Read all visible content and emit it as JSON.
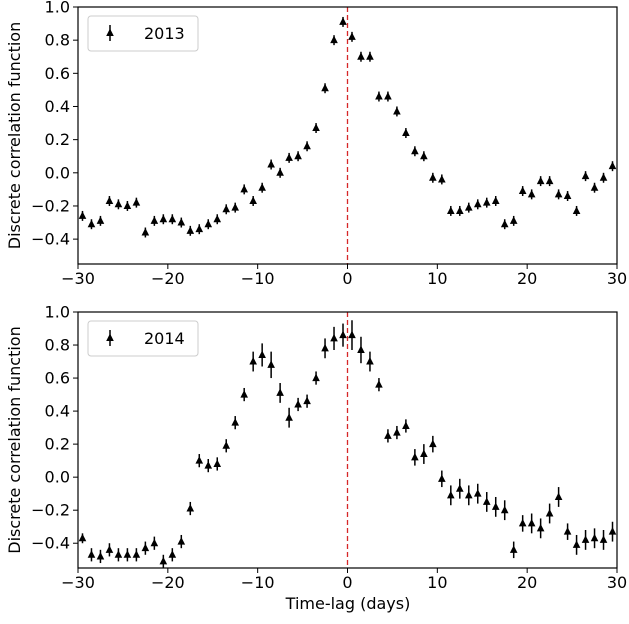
{
  "figure": {
    "xlabel": "Time-lag (days)",
    "zero_line_color": "#d62728",
    "marker_color": "#000000"
  },
  "chart_data": [
    {
      "type": "scatter",
      "marker": "triangle-up",
      "error_bars": true,
      "legend": "2013",
      "legend_position": "top-left",
      "xlabel": "",
      "ylabel": "Discrete correlation function",
      "xlim": [
        -30,
        30
      ],
      "ylim": [
        -0.55,
        1.0
      ],
      "xticks": [
        "−30",
        "−20",
        "−10",
        "0",
        "10",
        "20",
        "30"
      ],
      "yticks": [
        "−0.4",
        "−0.2",
        "0.0",
        "0.2",
        "0.4",
        "0.6",
        "0.8",
        "1.0"
      ],
      "vline_x": 0,
      "x": [
        -29.5,
        -28.5,
        -27.5,
        -26.5,
        -25.5,
        -24.5,
        -23.5,
        -22.5,
        -21.5,
        -20.5,
        -19.5,
        -18.5,
        -17.5,
        -16.5,
        -15.5,
        -14.5,
        -13.5,
        -12.5,
        -11.5,
        -10.5,
        -9.5,
        -8.5,
        -7.5,
        -6.5,
        -5.5,
        -4.5,
        -3.5,
        -2.5,
        -1.5,
        -0.5,
        0.5,
        1.5,
        2.5,
        3.5,
        4.5,
        5.5,
        6.5,
        7.5,
        8.5,
        9.5,
        10.5,
        11.5,
        12.5,
        13.5,
        14.5,
        15.5,
        16.5,
        17.5,
        18.5,
        19.5,
        20.5,
        21.5,
        22.5,
        23.5,
        24.5,
        25.5,
        26.5,
        27.5,
        28.5,
        29.5
      ],
      "y": [
        -0.26,
        -0.31,
        -0.29,
        -0.17,
        -0.19,
        -0.2,
        -0.18,
        -0.36,
        -0.29,
        -0.28,
        -0.28,
        -0.3,
        -0.35,
        -0.34,
        -0.31,
        -0.28,
        -0.22,
        -0.21,
        -0.1,
        -0.17,
        -0.09,
        0.05,
        0.0,
        0.09,
        0.1,
        0.16,
        0.27,
        0.51,
        0.8,
        0.91,
        0.82,
        0.7,
        0.7,
        0.46,
        0.46,
        0.37,
        0.24,
        0.13,
        0.1,
        -0.03,
        -0.04,
        -0.23,
        -0.23,
        -0.21,
        -0.19,
        -0.18,
        -0.17,
        -0.31,
        -0.29,
        -0.11,
        -0.13,
        -0.05,
        -0.05,
        -0.13,
        -0.14,
        -0.23,
        -0.02,
        -0.09,
        -0.03,
        0.04
      ],
      "yerr": [
        0.03,
        0.03,
        0.03,
        0.03,
        0.03,
        0.03,
        0.03,
        0.03,
        0.03,
        0.03,
        0.03,
        0.03,
        0.03,
        0.03,
        0.03,
        0.03,
        0.03,
        0.03,
        0.03,
        0.03,
        0.03,
        0.03,
        0.03,
        0.03,
        0.03,
        0.03,
        0.03,
        0.03,
        0.03,
        0.03,
        0.03,
        0.03,
        0.03,
        0.03,
        0.03,
        0.03,
        0.03,
        0.03,
        0.03,
        0.03,
        0.03,
        0.03,
        0.03,
        0.03,
        0.03,
        0.03,
        0.03,
        0.03,
        0.03,
        0.03,
        0.03,
        0.03,
        0.03,
        0.03,
        0.03,
        0.03,
        0.03,
        0.03,
        0.03,
        0.03
      ]
    },
    {
      "type": "scatter",
      "marker": "triangle-up",
      "error_bars": true,
      "legend": "2014",
      "legend_position": "top-left",
      "xlabel": "Time-lag (days)",
      "ylabel": "Discrete correlation function",
      "xlim": [
        -30,
        30
      ],
      "ylim": [
        -0.55,
        1.0
      ],
      "xticks": [
        "−30",
        "−20",
        "−10",
        "0",
        "10",
        "20",
        "30"
      ],
      "yticks": [
        "−0.4",
        "−0.2",
        "0.0",
        "0.2",
        "0.4",
        "0.6",
        "0.8",
        "1.0"
      ],
      "vline_x": 0,
      "x": [
        -29.5,
        -28.5,
        -27.5,
        -26.5,
        -25.5,
        -24.5,
        -23.5,
        -22.5,
        -21.5,
        -20.5,
        -19.5,
        -18.5,
        -17.5,
        -16.5,
        -15.5,
        -14.5,
        -13.5,
        -12.5,
        -11.5,
        -10.5,
        -9.5,
        -8.5,
        -7.5,
        -6.5,
        -5.5,
        -4.5,
        -3.5,
        -2.5,
        -1.5,
        -0.5,
        0.5,
        1.5,
        2.5,
        3.5,
        4.5,
        5.5,
        6.5,
        7.5,
        8.5,
        9.5,
        10.5,
        11.5,
        12.5,
        13.5,
        14.5,
        15.5,
        16.5,
        17.5,
        18.5,
        19.5,
        20.5,
        21.5,
        22.5,
        23.5,
        24.5,
        25.5,
        26.5,
        27.5,
        28.5,
        29.5
      ],
      "y": [
        -0.37,
        -0.47,
        -0.48,
        -0.44,
        -0.47,
        -0.47,
        -0.47,
        -0.43,
        -0.4,
        -0.51,
        -0.47,
        -0.39,
        -0.19,
        0.1,
        0.07,
        0.08,
        0.19,
        0.33,
        0.5,
        0.7,
        0.74,
        0.68,
        0.51,
        0.36,
        0.44,
        0.46,
        0.6,
        0.78,
        0.84,
        0.86,
        0.86,
        0.77,
        0.7,
        0.56,
        0.25,
        0.27,
        0.31,
        0.12,
        0.14,
        0.2,
        -0.01,
        -0.11,
        -0.07,
        -0.11,
        -0.1,
        -0.15,
        -0.18,
        -0.2,
        -0.44,
        -0.28,
        -0.28,
        -0.31,
        -0.22,
        -0.12,
        -0.33,
        -0.41,
        -0.38,
        -0.37,
        -0.38,
        -0.33
      ],
      "yerr": [
        0.03,
        0.04,
        0.04,
        0.04,
        0.04,
        0.04,
        0.04,
        0.04,
        0.04,
        0.04,
        0.04,
        0.04,
        0.04,
        0.04,
        0.04,
        0.04,
        0.04,
        0.04,
        0.04,
        0.06,
        0.07,
        0.08,
        0.06,
        0.06,
        0.04,
        0.04,
        0.04,
        0.06,
        0.07,
        0.07,
        0.09,
        0.08,
        0.06,
        0.04,
        0.04,
        0.04,
        0.04,
        0.05,
        0.06,
        0.05,
        0.05,
        0.06,
        0.06,
        0.06,
        0.06,
        0.06,
        0.06,
        0.06,
        0.05,
        0.05,
        0.06,
        0.06,
        0.06,
        0.06,
        0.05,
        0.06,
        0.06,
        0.06,
        0.06,
        0.06
      ]
    }
  ]
}
